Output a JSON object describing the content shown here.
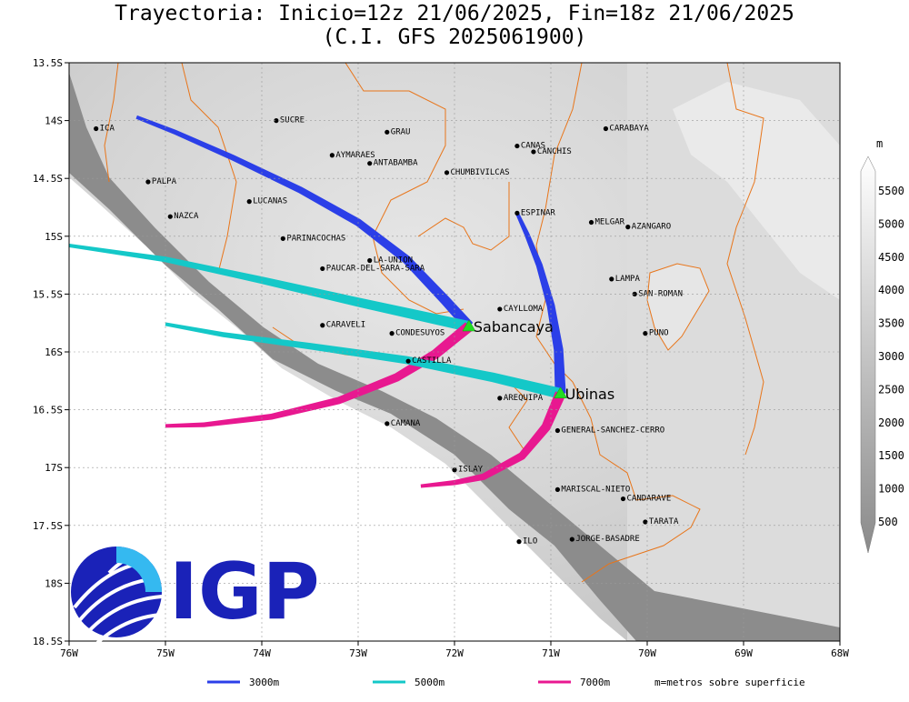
{
  "title": {
    "line1": "Trayectoria: Inicio=12z 21/06/2025, Fin=18z 21/06/2025",
    "line2": "(C.I. GFS 2025061900)"
  },
  "axes": {
    "lon_range": [
      -76,
      -68
    ],
    "lat_range": [
      -18.5,
      -13.5
    ],
    "x_ticks": [
      {
        "lon": -76,
        "label": "76W"
      },
      {
        "lon": -75,
        "label": "75W"
      },
      {
        "lon": -74,
        "label": "74W"
      },
      {
        "lon": -73,
        "label": "73W"
      },
      {
        "lon": -72,
        "label": "72W"
      },
      {
        "lon": -71,
        "label": "71W"
      },
      {
        "lon": -70,
        "label": "70W"
      },
      {
        "lon": -69,
        "label": "69W"
      },
      {
        "lon": -68,
        "label": "68W"
      }
    ],
    "y_ticks": [
      {
        "lat": -13.5,
        "label": "13.5S"
      },
      {
        "lat": -14,
        "label": "14S"
      },
      {
        "lat": -14.5,
        "label": "14.5S"
      },
      {
        "lat": -15,
        "label": "15S"
      },
      {
        "lat": -15.5,
        "label": "15.5S"
      },
      {
        "lat": -16,
        "label": "16S"
      },
      {
        "lat": -16.5,
        "label": "16.5S"
      },
      {
        "lat": -17,
        "label": "17S"
      },
      {
        "lat": -17.5,
        "label": "17.5S"
      },
      {
        "lat": -18,
        "label": "18S"
      },
      {
        "lat": -18.5,
        "label": "18.5S"
      }
    ]
  },
  "colorbar": {
    "unit": "m",
    "labels": [
      "5500",
      "5000",
      "4500",
      "4000",
      "3500",
      "3000",
      "2500",
      "2000",
      "1500",
      "1000",
      "500"
    ]
  },
  "volcanoes": [
    {
      "name": "Sabancaya",
      "lon": -71.85,
      "lat": -15.78
    },
    {
      "name": "Ubinas",
      "lon": -70.9,
      "lat": -16.36
    }
  ],
  "trajectories": [
    {
      "volcano": "Sabancaya",
      "level": "3000m",
      "color": "#2b3fe8",
      "points": [
        [
          -71.85,
          -15.78
        ],
        [
          -72.1,
          -15.55
        ],
        [
          -72.5,
          -15.2
        ],
        [
          -73.0,
          -14.88
        ],
        [
          -73.6,
          -14.6
        ],
        [
          -74.3,
          -14.32
        ],
        [
          -74.9,
          -14.1
        ],
        [
          -75.3,
          -13.97
        ]
      ]
    },
    {
      "volcano": "Sabancaya",
      "level": "5000m",
      "color": "#14c8c8",
      "points": [
        [
          -71.85,
          -15.78
        ],
        [
          -73.0,
          -15.57
        ],
        [
          -74.0,
          -15.38
        ],
        [
          -75.0,
          -15.2
        ],
        [
          -76.0,
          -15.08
        ]
      ]
    },
    {
      "volcano": "Sabancaya",
      "level": "7000m",
      "color": "#e81890",
      "points": [
        [
          -71.85,
          -15.78
        ],
        [
          -72.2,
          -16.02
        ],
        [
          -72.6,
          -16.22
        ],
        [
          -73.2,
          -16.42
        ],
        [
          -73.9,
          -16.56
        ],
        [
          -74.6,
          -16.63
        ],
        [
          -75.0,
          -16.64
        ]
      ]
    },
    {
      "volcano": "Ubinas",
      "level": "3000m",
      "color": "#2b3fe8",
      "points": [
        [
          -70.9,
          -16.36
        ],
        [
          -70.92,
          -15.98
        ],
        [
          -71.0,
          -15.6
        ],
        [
          -71.12,
          -15.25
        ],
        [
          -71.25,
          -14.98
        ],
        [
          -71.35,
          -14.8
        ]
      ]
    },
    {
      "volcano": "Ubinas",
      "level": "5000m",
      "color": "#14c8c8",
      "points": [
        [
          -70.9,
          -16.36
        ],
        [
          -71.6,
          -16.22
        ],
        [
          -72.5,
          -16.07
        ],
        [
          -73.5,
          -15.95
        ],
        [
          -74.4,
          -15.85
        ],
        [
          -75.0,
          -15.76
        ]
      ]
    },
    {
      "volcano": "Ubinas",
      "level": "7000m",
      "color": "#e81890",
      "points": [
        [
          -70.9,
          -16.36
        ],
        [
          -71.05,
          -16.65
        ],
        [
          -71.3,
          -16.9
        ],
        [
          -71.7,
          -17.08
        ],
        [
          -72.0,
          -17.13
        ],
        [
          -72.35,
          -17.16
        ]
      ]
    }
  ],
  "places": [
    {
      "name": "ICA",
      "lon": -75.72,
      "lat": -14.07
    },
    {
      "name": "SUCRE",
      "lon": -73.85,
      "lat": -14.0
    },
    {
      "name": "GRAU",
      "lon": -72.7,
      "lat": -14.1
    },
    {
      "name": "CANAS",
      "lon": -71.35,
      "lat": -14.22
    },
    {
      "name": "CANCHIS",
      "lon": -71.18,
      "lat": -14.27
    },
    {
      "name": "CARABAYA",
      "lon": -70.43,
      "lat": -14.07
    },
    {
      "name": "AYMARAES",
      "lon": -73.27,
      "lat": -14.3
    },
    {
      "name": "ANTABAMBA",
      "lon": -72.88,
      "lat": -14.37
    },
    {
      "name": "CHUMBIVILCAS",
      "lon": -72.08,
      "lat": -14.45
    },
    {
      "name": "PALPA",
      "lon": -75.18,
      "lat": -14.53
    },
    {
      "name": "LUCANAS",
      "lon": -74.13,
      "lat": -14.7
    },
    {
      "name": "ESPINAR",
      "lon": -71.35,
      "lat": -14.8
    },
    {
      "name": "NAZCA",
      "lon": -74.95,
      "lat": -14.83
    },
    {
      "name": "MELGAR",
      "lon": -70.58,
      "lat": -14.88
    },
    {
      "name": "AZANGARO",
      "lon": -70.2,
      "lat": -14.92
    },
    {
      "name": "PARINACOCHAS",
      "lon": -73.78,
      "lat": -15.02
    },
    {
      "name": "LA-UNION",
      "lon": -72.88,
      "lat": -15.21
    },
    {
      "name": "PAUCAR-DEL-SARA-SARA",
      "lon": -73.37,
      "lat": -15.28
    },
    {
      "name": "LAMPA",
      "lon": -70.37,
      "lat": -15.37
    },
    {
      "name": "SAN-ROMAN",
      "lon": -70.13,
      "lat": -15.5
    },
    {
      "name": "CAYLLOMA",
      "lon": -71.53,
      "lat": -15.63
    },
    {
      "name": "CARAVELI",
      "lon": -73.37,
      "lat": -15.77
    },
    {
      "name": "CONDESUYOS",
      "lon": -72.65,
      "lat": -15.84
    },
    {
      "name": "PUNO",
      "lon": -70.02,
      "lat": -15.84
    },
    {
      "name": "CASTILLA",
      "lon": -72.48,
      "lat": -16.08
    },
    {
      "name": "AREQUIPA",
      "lon": -71.53,
      "lat": -16.4
    },
    {
      "name": "CAMANA",
      "lon": -72.7,
      "lat": -16.62
    },
    {
      "name": "GENERAL-SANCHEZ-CERRO",
      "lon": -70.93,
      "lat": -16.68
    },
    {
      "name": "ISLAY",
      "lon": -72.0,
      "lat": -17.02
    },
    {
      "name": "MARISCAL-NIETO",
      "lon": -70.93,
      "lat": -17.19
    },
    {
      "name": "CANDARAVE",
      "lon": -70.25,
      "lat": -17.27
    },
    {
      "name": "TARATA",
      "lon": -70.02,
      "lat": -17.47
    },
    {
      "name": "ILO",
      "lon": -71.33,
      "lat": -17.64
    },
    {
      "name": "JORGE-BASADRE",
      "lon": -70.78,
      "lat": -17.62
    }
  ],
  "legend": [
    {
      "label": "3000m",
      "color": "#2b3fe8"
    },
    {
      "label": "5000m",
      "color": "#14c8c8"
    },
    {
      "label": "7000m",
      "color": "#e81890"
    }
  ],
  "legend_note": "m=metros sobre superficie",
  "logo": {
    "text": "IGP"
  }
}
